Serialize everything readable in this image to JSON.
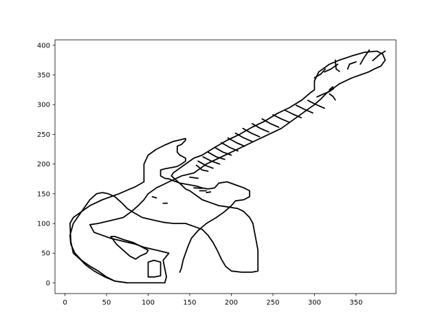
{
  "chart_data": {
    "type": "line",
    "title": "",
    "xlabel": "",
    "ylabel": "",
    "xlim": [
      -12,
      398
    ],
    "ylim": [
      -18,
      409
    ],
    "xticks": [
      0,
      50,
      100,
      150,
      200,
      250,
      300,
      350
    ],
    "yticks": [
      0,
      50,
      100,
      150,
      200,
      250,
      300,
      350,
      400
    ],
    "grid": false,
    "legend": "none",
    "line_color": "#000000",
    "series": [
      {
        "points": [
          [
            75,
            0
          ],
          [
            110,
            0
          ],
          [
            120,
            0
          ],
          [
            122,
            10
          ],
          [
            118,
            38
          ],
          [
            125,
            50
          ],
          [
            110,
            55
          ],
          [
            95,
            60
          ],
          [
            85,
            65
          ],
          [
            70,
            70
          ],
          [
            55,
            75
          ],
          [
            45,
            80
          ],
          [
            35,
            85
          ],
          [
            30,
            98
          ],
          [
            40,
            100
          ],
          [
            55,
            105
          ],
          [
            70,
            110
          ],
          [
            80,
            120
          ],
          [
            88,
            130
          ],
          [
            95,
            140
          ],
          [
            100,
            150
          ],
          [
            110,
            160
          ],
          [
            125,
            170
          ],
          [
            140,
            180
          ],
          [
            155,
            185
          ],
          [
            160,
            190
          ],
          [
            170,
            200
          ],
          [
            185,
            210
          ],
          [
            200,
            220
          ],
          [
            215,
            230
          ],
          [
            230,
            240
          ],
          [
            245,
            250
          ],
          [
            260,
            260
          ],
          [
            275,
            275
          ],
          [
            290,
            290
          ],
          [
            300,
            300
          ],
          [
            308,
            310
          ],
          [
            315,
            320
          ],
          [
            320,
            325
          ],
          [
            325,
            330
          ],
          [
            330,
            335
          ],
          [
            345,
            345
          ],
          [
            355,
            350
          ],
          [
            365,
            355
          ],
          [
            372,
            360
          ],
          [
            380,
            365
          ],
          [
            385,
            375
          ],
          [
            382,
            385
          ],
          [
            375,
            390
          ],
          [
            360,
            388
          ],
          [
            345,
            382
          ],
          [
            330,
            375
          ],
          [
            318,
            368
          ],
          [
            305,
            355
          ],
          [
            300,
            340
          ],
          [
            300,
            325
          ],
          [
            295,
            320
          ],
          [
            285,
            308
          ],
          [
            270,
            295
          ],
          [
            255,
            285
          ],
          [
            240,
            272
          ],
          [
            225,
            262
          ],
          [
            210,
            250
          ],
          [
            195,
            240
          ],
          [
            180,
            228
          ],
          [
            165,
            215
          ],
          [
            155,
            210
          ],
          [
            145,
            200
          ],
          [
            140,
            195
          ],
          [
            135,
            190
          ],
          [
            130,
            185
          ],
          [
            128,
            180
          ],
          [
            140,
            165
          ],
          [
            145,
            158
          ],
          [
            150,
            155
          ],
          [
            155,
            150
          ],
          [
            160,
            145
          ],
          [
            165,
            140
          ],
          [
            175,
            135
          ],
          [
            185,
            130
          ],
          [
            195,
            128
          ],
          [
            208,
            125
          ],
          [
            215,
            120
          ],
          [
            222,
            110
          ],
          [
            226,
            100
          ],
          [
            228,
            85
          ],
          [
            230,
            70
          ],
          [
            232,
            55
          ],
          [
            232,
            35
          ],
          [
            232,
            20
          ],
          [
            225,
            18
          ],
          [
            212,
            18
          ],
          [
            200,
            20
          ],
          [
            193,
            28
          ],
          [
            188,
            40
          ],
          [
            183,
            55
          ],
          [
            178,
            68
          ],
          [
            172,
            80
          ],
          [
            165,
            90
          ],
          [
            155,
            95
          ],
          [
            145,
            100
          ],
          [
            130,
            100
          ],
          [
            118,
            102
          ],
          [
            105,
            106
          ],
          [
            93,
            110
          ],
          [
            83,
            118
          ],
          [
            75,
            125
          ],
          [
            68,
            135
          ],
          [
            60,
            145
          ],
          [
            52,
            150
          ],
          [
            45,
            152
          ],
          [
            38,
            150
          ],
          [
            30,
            140
          ],
          [
            20,
            120
          ],
          [
            10,
            100
          ],
          [
            6,
            80
          ],
          [
            7,
            65
          ],
          [
            12,
            50
          ],
          [
            20,
            38
          ],
          [
            30,
            28
          ],
          [
            40,
            20
          ],
          [
            50,
            10
          ],
          [
            60,
            3
          ],
          [
            75,
            0
          ]
        ]
      },
      {
        "points": [
          [
            75,
            0
          ],
          [
            60,
            3
          ],
          [
            48,
            10
          ],
          [
            35,
            20
          ],
          [
            25,
            30
          ],
          [
            18,
            40
          ],
          [
            10,
            50
          ],
          [
            7,
            70
          ],
          [
            6,
            100
          ],
          [
            10,
            110
          ],
          [
            20,
            120
          ],
          [
            30,
            130
          ],
          [
            45,
            140
          ],
          [
            65,
            150
          ],
          [
            78,
            158
          ],
          [
            85,
            162
          ],
          [
            95,
            170
          ],
          [
            95,
            200
          ],
          [
            100,
            215
          ],
          [
            110,
            225
          ],
          [
            120,
            232
          ],
          [
            130,
            238
          ],
          [
            145,
            243
          ],
          [
            145,
            240
          ],
          [
            140,
            233
          ],
          [
            135,
            230
          ],
          [
            135,
            220
          ],
          [
            138,
            215
          ],
          [
            145,
            210
          ],
          [
            145,
            205
          ],
          [
            140,
            200
          ],
          [
            135,
            196
          ],
          [
            128,
            194
          ],
          [
            120,
            192
          ],
          [
            115,
            190
          ],
          [
            115,
            180
          ],
          [
            120,
            176
          ],
          [
            125,
            175
          ],
          [
            130,
            172
          ],
          [
            138,
            168
          ],
          [
            150,
            165
          ],
          [
            158,
            163
          ],
          [
            165,
            160
          ],
          [
            172,
            158
          ],
          [
            180,
            160
          ],
          [
            185,
            168
          ],
          [
            195,
            170
          ],
          [
            205,
            165
          ],
          [
            215,
            160
          ],
          [
            222,
            155
          ],
          [
            222,
            145
          ],
          [
            215,
            140
          ],
          [
            205,
            138
          ],
          [
            200,
            130
          ],
          [
            192,
            120
          ],
          [
            182,
            110
          ],
          [
            170,
            100
          ],
          [
            160,
            88
          ],
          [
            152,
            75
          ],
          [
            148,
            62
          ],
          [
            145,
            50
          ],
          [
            142,
            38
          ],
          [
            140,
            25
          ],
          [
            138,
            18
          ]
        ]
      },
      {
        "points": [
          [
            100,
            10
          ],
          [
            100,
            35
          ],
          [
            107,
            38
          ],
          [
            115,
            35
          ],
          [
            115,
            12
          ],
          [
            108,
            10
          ],
          [
            100,
            10
          ]
        ]
      },
      {
        "points": [
          [
            55,
            78
          ],
          [
            62,
            65
          ],
          [
            70,
            55
          ],
          [
            78,
            45
          ],
          [
            85,
            40
          ],
          [
            90,
            45
          ],
          [
            98,
            50
          ],
          [
            100,
            55
          ],
          [
            93,
            60
          ],
          [
            82,
            68
          ],
          [
            70,
            73
          ],
          [
            60,
            78
          ],
          [
            55,
            78
          ]
        ]
      }
    ],
    "strokes": [
      {
        "points": [
          [
            150,
            178
          ],
          [
            160,
            176
          ]
        ]
      },
      {
        "points": [
          [
            155,
            160
          ],
          [
            165,
            159
          ]
        ]
      },
      {
        "points": [
          [
            162,
            155
          ],
          [
            170,
            155
          ]
        ]
      },
      {
        "points": [
          [
            170,
            152
          ],
          [
            175,
            153
          ]
        ]
      },
      {
        "points": [
          [
            105,
            145
          ],
          [
            110,
            143
          ]
        ]
      },
      {
        "points": [
          [
            118,
            134
          ],
          [
            123,
            134
          ]
        ]
      },
      {
        "points": [
          [
            158,
            198
          ],
          [
            165,
            190
          ],
          [
            172,
            188
          ]
        ]
      },
      {
        "points": [
          [
            160,
            205
          ],
          [
            170,
            197
          ],
          [
            178,
            193
          ]
        ]
      },
      {
        "points": [
          [
            166,
            212
          ],
          [
            176,
            205
          ],
          [
            186,
            200
          ]
        ]
      },
      {
        "points": [
          [
            172,
            220
          ],
          [
            182,
            212
          ],
          [
            192,
            208
          ]
        ]
      },
      {
        "points": [
          [
            180,
            228
          ],
          [
            190,
            220
          ],
          [
            200,
            215
          ]
        ]
      },
      {
        "points": [
          [
            188,
            236
          ],
          [
            198,
            228
          ],
          [
            208,
            222
          ]
        ]
      },
      {
        "points": [
          [
            196,
            244
          ],
          [
            206,
            236
          ],
          [
            216,
            230
          ]
        ]
      },
      {
        "points": [
          [
            205,
            252
          ],
          [
            215,
            244
          ],
          [
            225,
            238
          ]
        ]
      },
      {
        "points": [
          [
            214,
            260
          ],
          [
            224,
            252
          ],
          [
            234,
            246
          ]
        ]
      },
      {
        "points": [
          [
            225,
            268
          ],
          [
            235,
            260
          ],
          [
            245,
            254
          ]
        ]
      },
      {
        "points": [
          [
            237,
            276
          ],
          [
            247,
            268
          ],
          [
            257,
            262
          ]
        ]
      },
      {
        "points": [
          [
            250,
            283
          ],
          [
            260,
            276
          ],
          [
            270,
            270
          ]
        ]
      },
      {
        "points": [
          [
            264,
            291
          ],
          [
            274,
            284
          ],
          [
            284,
            278
          ]
        ]
      },
      {
        "points": [
          [
            278,
            299
          ],
          [
            288,
            292
          ],
          [
            298,
            286
          ]
        ]
      },
      {
        "points": [
          [
            292,
            307
          ],
          [
            302,
            300
          ],
          [
            312,
            294
          ]
        ]
      },
      {
        "points": [
          [
            303,
            313
          ],
          [
            311,
            318
          ],
          [
            318,
            322
          ],
          [
            323,
            327
          ]
        ]
      },
      {
        "points": [
          [
            318,
            318
          ],
          [
            322,
            314
          ],
          [
            325,
            308
          ]
        ]
      },
      {
        "points": [
          [
            322,
            330
          ],
          [
            318,
            325
          ]
        ]
      },
      {
        "points": [
          [
            330,
            356
          ],
          [
            326,
            360
          ],
          [
            325,
            375
          ]
        ]
      },
      {
        "points": [
          [
            340,
            360
          ],
          [
            342,
            368
          ],
          [
            350,
            372
          ]
        ]
      },
      {
        "points": [
          [
            355,
            368
          ],
          [
            360,
            380
          ],
          [
            366,
            392
          ]
        ]
      },
      {
        "points": [
          [
            370,
            374
          ],
          [
            378,
            384
          ],
          [
            385,
            390
          ]
        ]
      },
      {
        "points": [
          [
            312,
            355
          ],
          [
            320,
            360
          ],
          [
            328,
            368
          ]
        ]
      },
      {
        "points": [
          [
            300,
            345
          ],
          [
            308,
            352
          ],
          [
            313,
            360
          ]
        ]
      }
    ]
  }
}
